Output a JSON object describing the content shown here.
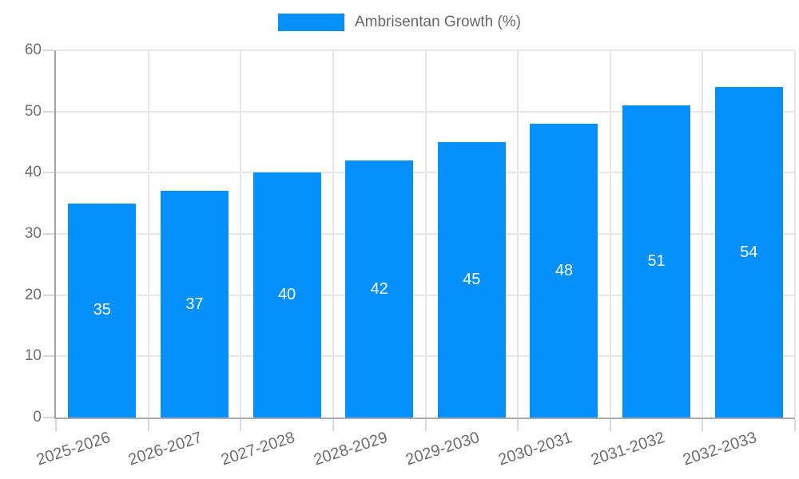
{
  "chart_data": {
    "type": "bar",
    "legend_label": "Ambrisentan Growth (%)",
    "legend_position": "top",
    "categories": [
      "2025-2026",
      "2026-2027",
      "2027-2028",
      "2028-2029",
      "2029-2030",
      "2030-2031",
      "2031-2032",
      "2032-2033"
    ],
    "values": [
      35,
      37,
      40,
      42,
      45,
      48,
      51,
      54
    ],
    "ytick_labels": [
      "0",
      "10",
      "20",
      "30",
      "40",
      "50",
      "60"
    ],
    "ylim": [
      0,
      60
    ],
    "ytick_step": 10,
    "grid": true,
    "xlabel": "",
    "ylabel": "",
    "title": "",
    "colors": {
      "bar": "#0590fb",
      "bar_value_text": "#ffffff",
      "axis_text": "#6e6e6e",
      "legend_text": "#666666",
      "gridline": "#e7e7e7",
      "axis_line": "#a3a3a3"
    }
  }
}
